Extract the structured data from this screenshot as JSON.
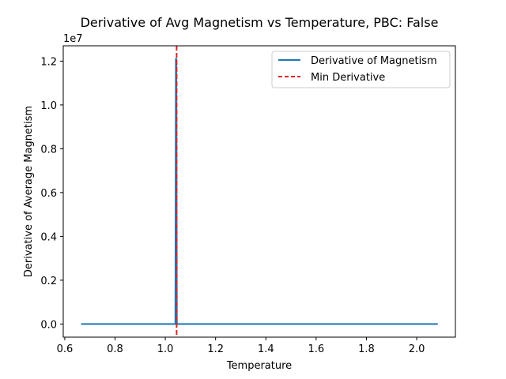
{
  "chart_data": {
    "type": "line",
    "title": "Derivative of Avg Magnetism vs Temperature, PBC: False",
    "xlabel": "Temperature",
    "ylabel": "Derivative of Average Magnetism",
    "y_offset_label": "1e7",
    "xlim": [
      0.594,
      2.154
    ],
    "ylim": [
      -0.06,
      1.27
    ],
    "x_ticks": [
      0.6,
      0.8,
      1.0,
      1.2,
      1.4,
      1.6,
      1.8,
      2.0
    ],
    "x_tick_labels": [
      "0.6",
      "0.8",
      "1.0",
      "1.2",
      "1.4",
      "1.6",
      "1.8",
      "2.0"
    ],
    "y_ticks": [
      0.0,
      0.2,
      0.4,
      0.6,
      0.8,
      1.0,
      1.2
    ],
    "y_tick_labels": [
      "0.0",
      "0.2",
      "0.4",
      "0.6",
      "0.8",
      "1.0",
      "1.2"
    ],
    "grid": false,
    "legend_position": "top-right",
    "series": [
      {
        "name": "Derivative of Magnetism",
        "color": "#1f77b4",
        "style": "solid",
        "x": [
          0.665,
          1.04,
          1.042,
          1.044,
          1.046,
          2.084
        ],
        "y": [
          0.0,
          0.0,
          1.21,
          1.21,
          0.0,
          0.0
        ]
      }
    ],
    "vline": {
      "name": "Min Derivative",
      "color": "#d62728",
      "style": "dashed",
      "x": 1.045
    }
  }
}
